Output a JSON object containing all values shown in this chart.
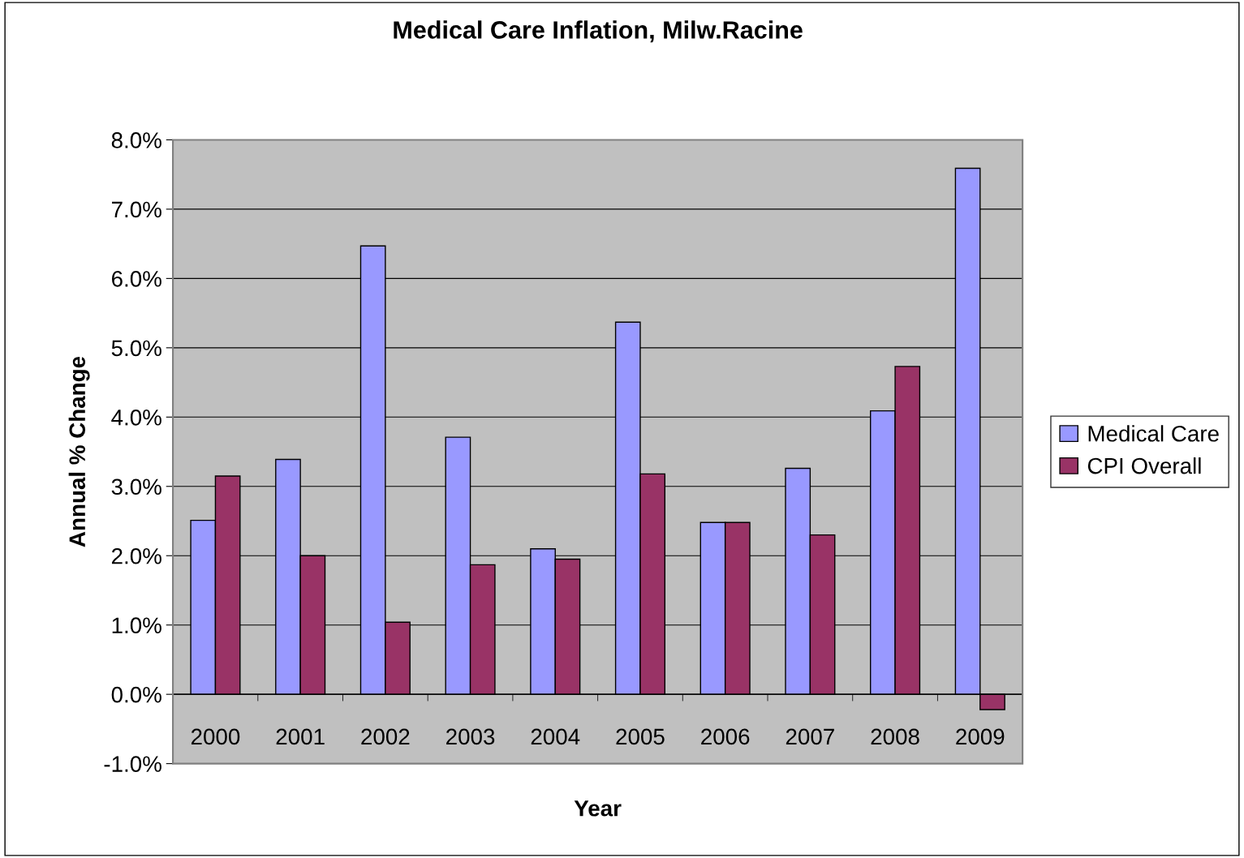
{
  "chart_data": {
    "type": "bar",
    "title": "Medical Care Inflation, Milw.Racine",
    "xlabel": "Year",
    "ylabel": "Annual % Change",
    "categories": [
      "2000",
      "2001",
      "2002",
      "2003",
      "2004",
      "2005",
      "2006",
      "2007",
      "2008",
      "2009"
    ],
    "series": [
      {
        "name": "Medical Care",
        "color": "#9999ff",
        "values": [
          2.51,
          3.39,
          6.47,
          3.71,
          2.1,
          5.37,
          2.48,
          3.26,
          4.09,
          7.59
        ]
      },
      {
        "name": "CPI Overall",
        "color": "#993366",
        "values": [
          3.15,
          2.0,
          1.04,
          1.87,
          1.95,
          3.18,
          2.48,
          2.3,
          4.73,
          -0.22
        ]
      }
    ],
    "ylim": [
      -1,
      8
    ],
    "yticks": [
      {
        "value": -1,
        "label": "-1.0%"
      },
      {
        "value": 0,
        "label": "0.0%"
      },
      {
        "value": 1,
        "label": "1.0%"
      },
      {
        "value": 2,
        "label": "2.0%"
      },
      {
        "value": 3,
        "label": "3.0%"
      },
      {
        "value": 4,
        "label": "4.0%"
      },
      {
        "value": 5,
        "label": "5.0%"
      },
      {
        "value": 6,
        "label": "6.0%"
      },
      {
        "value": 7,
        "label": "7.0%"
      },
      {
        "value": 8,
        "label": "8.0%"
      }
    ],
    "grid": "y",
    "legend": "right"
  }
}
